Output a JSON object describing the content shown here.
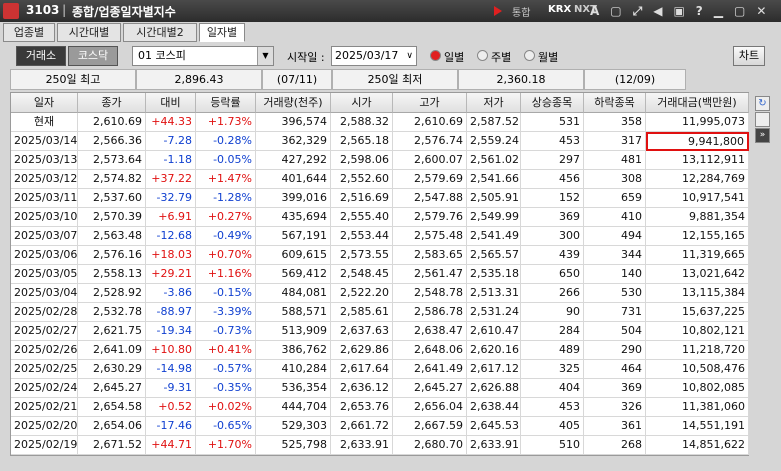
{
  "header": {
    "screen_no": "3103",
    "title": "종합/업종일자별지수",
    "toolbar": [
      "통합",
      "KRX",
      "NXT"
    ]
  },
  "tabs": [
    "업종별",
    "시간대별",
    "시간대별2",
    "일자별"
  ],
  "active_tab": 3,
  "controls": {
    "markets": [
      "거래소",
      "코스닥"
    ],
    "market_selected": 0,
    "index_select": "01 코스피",
    "start_label": "시작일 :",
    "start_date": "2025/03/17",
    "periods": [
      "일별",
      "주별",
      "월별"
    ],
    "period_selected": 0,
    "chart_button": "차트"
  },
  "summary": [
    "250일 최고",
    "2,896.43",
    "(07/11)",
    "250일 최저",
    "2,360.18",
    "(12/09)"
  ],
  "table": {
    "columns": [
      "일자",
      "종가",
      "대비",
      "등락률",
      "거래량(천주)",
      "시가",
      "고가",
      "저가",
      "상승종목",
      "하락종목",
      "거래대금(백만원)"
    ],
    "rows": [
      [
        "현재",
        "2,610.69",
        "+44.33",
        "+1.73%",
        "396,574",
        "2,588.32",
        "2,610.69",
        "2,587.52",
        "531",
        "358",
        "11,995,073"
      ],
      [
        "2025/03/14",
        "2,566.36",
        "-7.28",
        "-0.28%",
        "362,329",
        "2,565.18",
        "2,576.74",
        "2,559.24",
        "453",
        "317",
        "9,941,800"
      ],
      [
        "2025/03/13",
        "2,573.64",
        "-1.18",
        "-0.05%",
        "427,292",
        "2,598.06",
        "2,600.07",
        "2,561.02",
        "297",
        "481",
        "13,112,911"
      ],
      [
        "2025/03/12",
        "2,574.82",
        "+37.22",
        "+1.47%",
        "401,644",
        "2,552.60",
        "2,579.69",
        "2,541.66",
        "456",
        "308",
        "12,284,769"
      ],
      [
        "2025/03/11",
        "2,537.60",
        "-32.79",
        "-1.28%",
        "399,016",
        "2,516.69",
        "2,547.88",
        "2,505.91",
        "152",
        "659",
        "10,917,541"
      ],
      [
        "2025/03/10",
        "2,570.39",
        "+6.91",
        "+0.27%",
        "435,694",
        "2,555.40",
        "2,579.76",
        "2,549.99",
        "369",
        "410",
        "9,881,354"
      ],
      [
        "2025/03/07",
        "2,563.48",
        "-12.68",
        "-0.49%",
        "567,191",
        "2,553.44",
        "2,575.48",
        "2,541.49",
        "300",
        "494",
        "12,155,165"
      ],
      [
        "2025/03/06",
        "2,576.16",
        "+18.03",
        "+0.70%",
        "609,615",
        "2,573.55",
        "2,583.65",
        "2,565.57",
        "439",
        "344",
        "11,319,665"
      ],
      [
        "2025/03/05",
        "2,558.13",
        "+29.21",
        "+1.16%",
        "569,412",
        "2,548.45",
        "2,561.47",
        "2,535.18",
        "650",
        "140",
        "13,021,642"
      ],
      [
        "2025/03/04",
        "2,528.92",
        "-3.86",
        "-0.15%",
        "484,081",
        "2,522.20",
        "2,548.78",
        "2,513.31",
        "266",
        "530",
        "13,115,384"
      ],
      [
        "2025/02/28",
        "2,532.78",
        "-88.97",
        "-3.39%",
        "588,571",
        "2,585.61",
        "2,586.78",
        "2,531.24",
        "90",
        "731",
        "15,637,225"
      ],
      [
        "2025/02/27",
        "2,621.75",
        "-19.34",
        "-0.73%",
        "513,909",
        "2,637.63",
        "2,638.47",
        "2,610.47",
        "284",
        "504",
        "10,802,121"
      ],
      [
        "2025/02/26",
        "2,641.09",
        "+10.80",
        "+0.41%",
        "386,762",
        "2,629.86",
        "2,648.06",
        "2,620.16",
        "489",
        "290",
        "11,218,720"
      ],
      [
        "2025/02/25",
        "2,630.29",
        "-14.98",
        "-0.57%",
        "410,284",
        "2,617.64",
        "2,641.49",
        "2,617.12",
        "325",
        "464",
        "10,508,476"
      ],
      [
        "2025/02/24",
        "2,645.27",
        "-9.31",
        "-0.35%",
        "536,354",
        "2,636.12",
        "2,645.27",
        "2,626.88",
        "404",
        "369",
        "10,802,085"
      ],
      [
        "2025/02/21",
        "2,654.58",
        "+0.52",
        "+0.02%",
        "444,704",
        "2,653.76",
        "2,656.04",
        "2,638.44",
        "453",
        "326",
        "11,381,060"
      ],
      [
        "2025/02/20",
        "2,654.06",
        "-17.46",
        "-0.65%",
        "529,303",
        "2,661.72",
        "2,667.59",
        "2,645.53",
        "405",
        "361",
        "14,551,191"
      ],
      [
        "2025/02/19",
        "2,671.52",
        "+44.71",
        "+1.70%",
        "525,798",
        "2,633.91",
        "2,680.70",
        "2,633.91",
        "510",
        "268",
        "14,851,622"
      ]
    ],
    "highlight": [
      1,
      10
    ]
  }
}
